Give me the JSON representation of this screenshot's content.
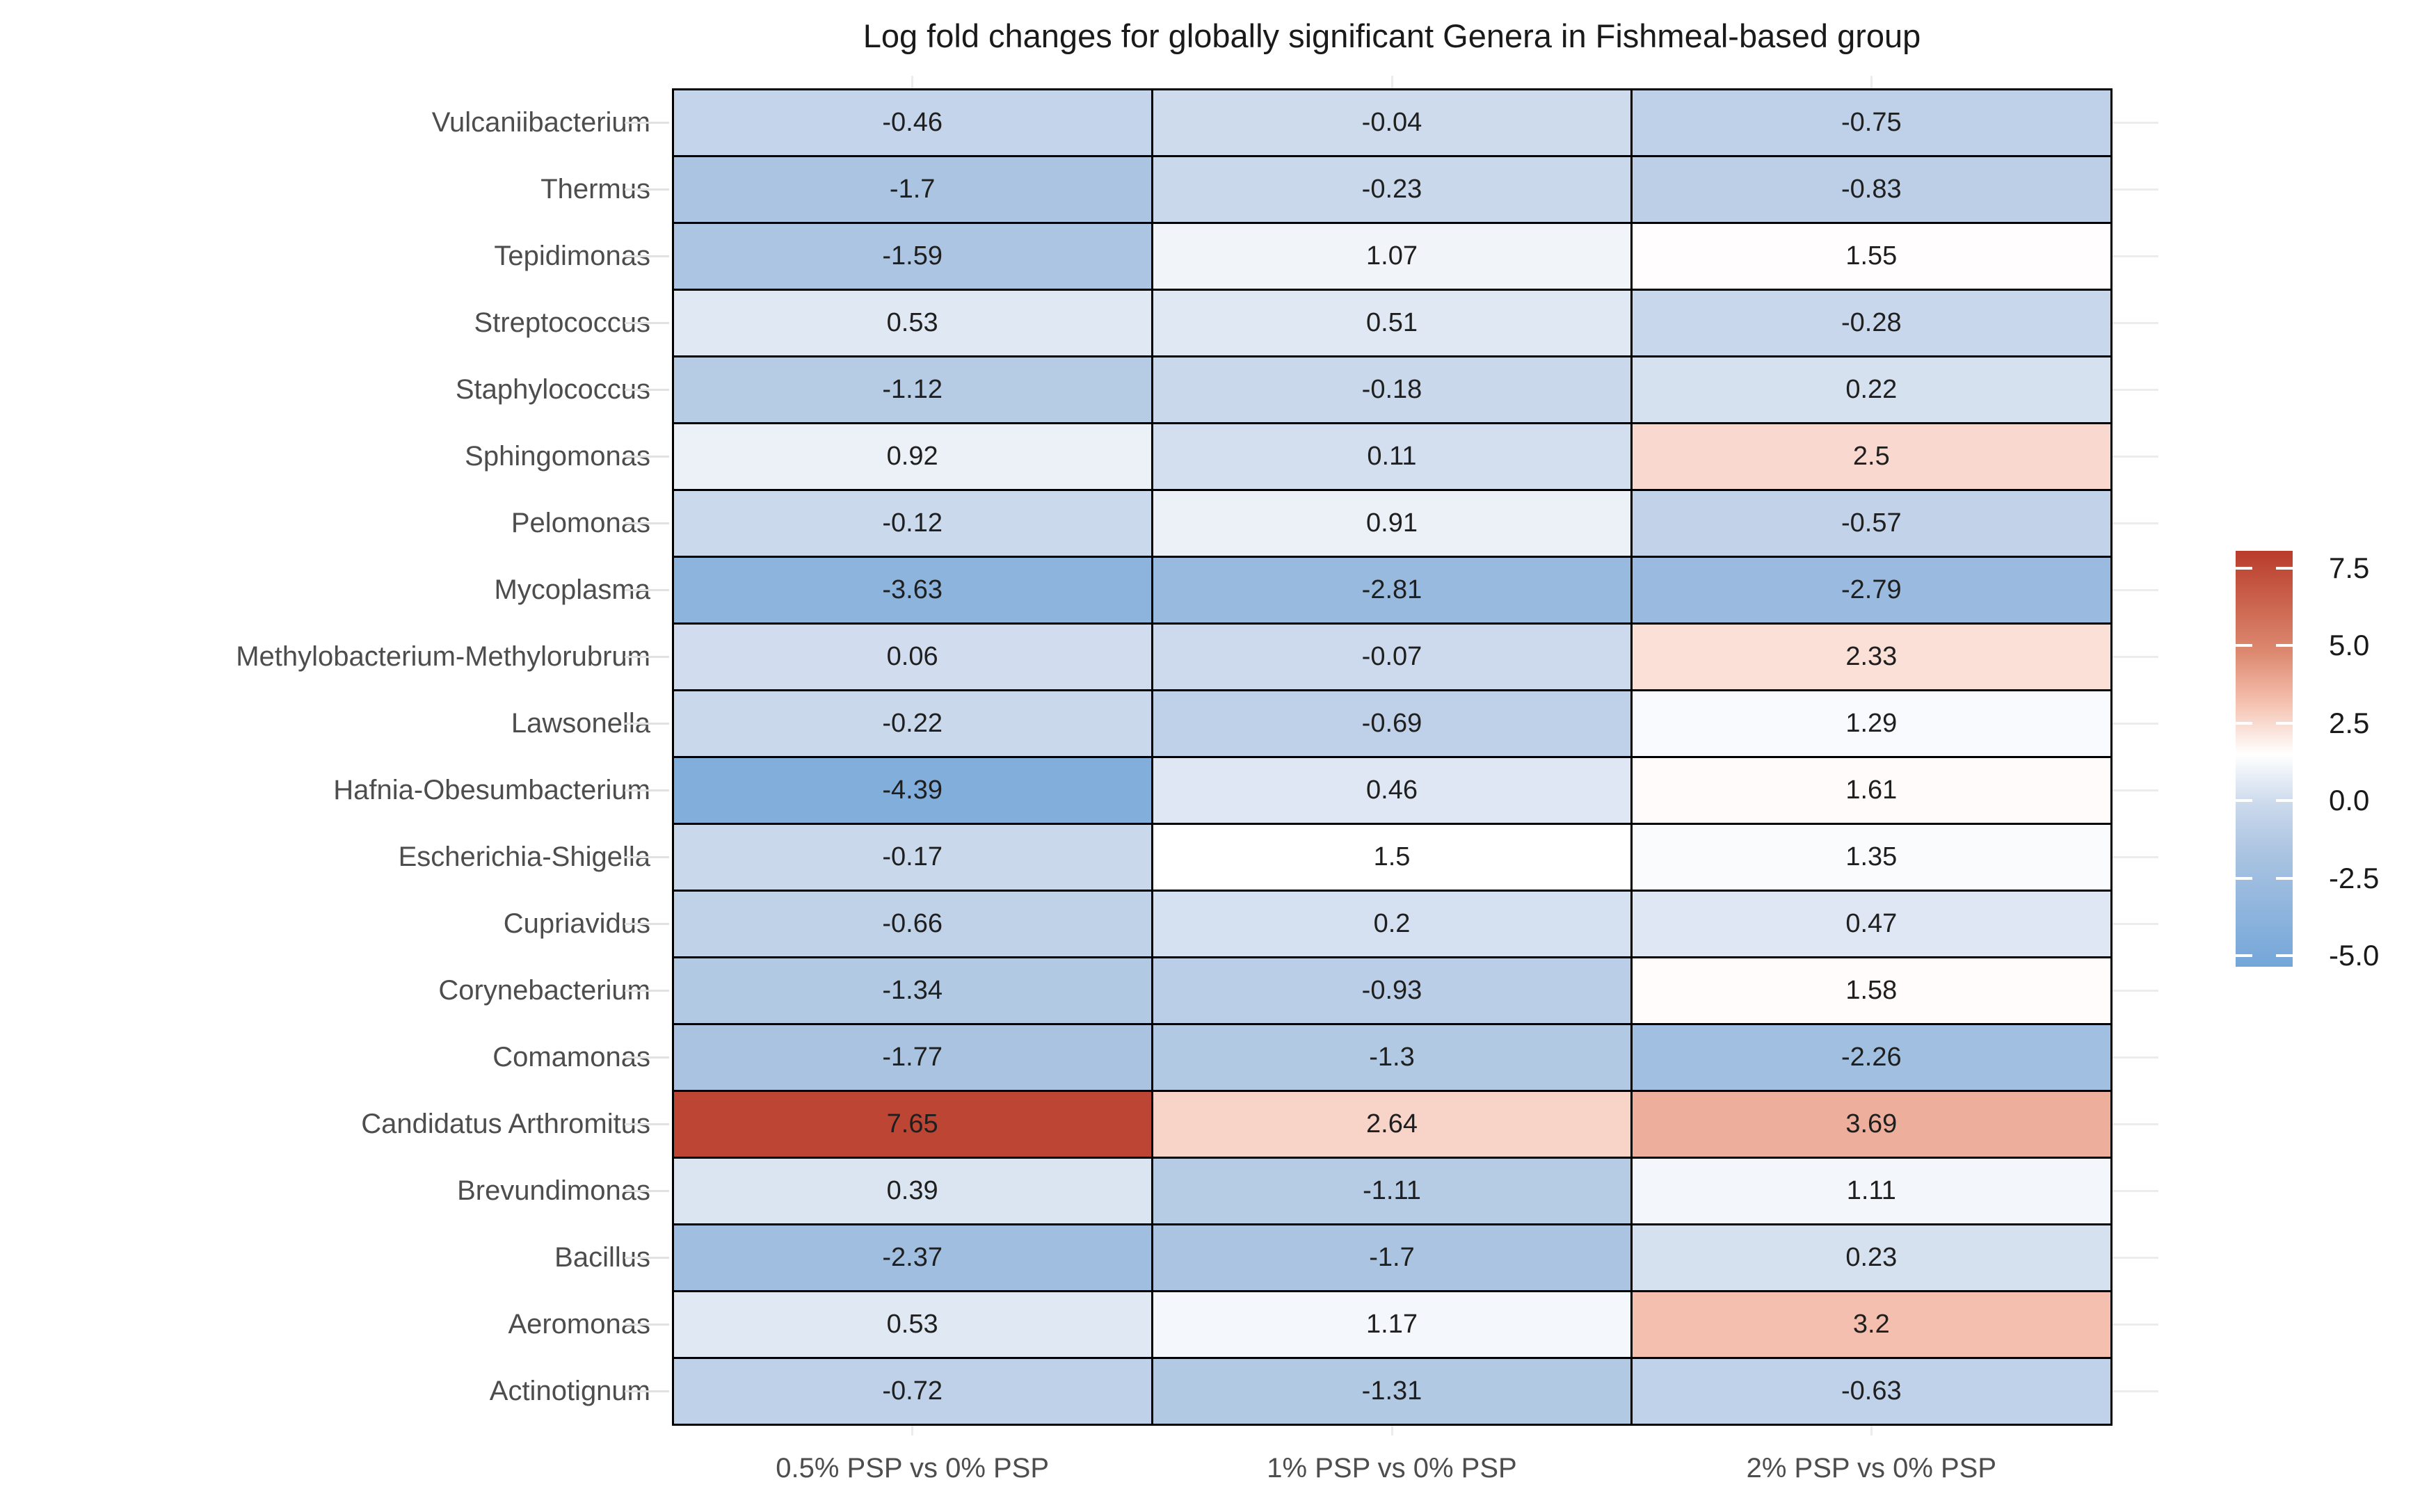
{
  "chart_data": {
    "type": "heatmap",
    "title": "Log fold changes for globally significant Genera in Fishmeal-based group",
    "columns": [
      "0.5% PSP vs 0% PSP",
      "1% PSP vs 0% PSP",
      "2% PSP vs 0% PSP"
    ],
    "rows": [
      "Vulcaniibacterium",
      "Thermus",
      "Tepidimonas",
      "Streptococcus",
      "Staphylococcus",
      "Sphingomonas",
      "Pelomonas",
      "Mycoplasma",
      "Methylobacterium-Methylorubrum",
      "Lawsonella",
      "Hafnia-Obesumbacterium",
      "Escherichia-Shigella",
      "Cupriavidus",
      "Corynebacterium",
      "Comamonas",
      "Candidatus Arthromitus",
      "Brevundimonas",
      "Bacillus",
      "Aeromonas",
      "Actinotignum"
    ],
    "values": [
      [
        -0.46,
        -0.04,
        -0.75
      ],
      [
        -1.7,
        -0.23,
        -0.83
      ],
      [
        -1.59,
        1.07,
        1.55
      ],
      [
        0.53,
        0.51,
        -0.28
      ],
      [
        -1.12,
        -0.18,
        0.22
      ],
      [
        0.92,
        0.11,
        2.5
      ],
      [
        -0.12,
        0.91,
        -0.57
      ],
      [
        -3.63,
        -2.81,
        -2.79
      ],
      [
        0.06,
        -0.07,
        2.33
      ],
      [
        -0.22,
        -0.69,
        1.29
      ],
      [
        -4.39,
        0.46,
        1.61
      ],
      [
        -0.17,
        1.5,
        1.35
      ],
      [
        -0.66,
        0.2,
        0.47
      ],
      [
        -1.34,
        -0.93,
        1.58
      ],
      [
        -1.77,
        -1.3,
        -2.26
      ],
      [
        7.65,
        2.64,
        3.69
      ],
      [
        0.39,
        -1.11,
        1.11
      ],
      [
        -2.37,
        -1.7,
        0.23
      ],
      [
        0.53,
        1.17,
        3.2
      ],
      [
        -0.72,
        -1.31,
        -0.63
      ]
    ],
    "grid": true,
    "legend_position": "right",
    "colorbar": {
      "tick_labels": [
        "7.5",
        "5.0",
        "2.5",
        "0.0",
        "-2.5",
        "-5.0"
      ],
      "tick_values": [
        7.5,
        5.0,
        2.5,
        0.0,
        -2.5,
        -5.0
      ],
      "limits": [
        -5,
        8
      ],
      "midpoint": 1.5,
      "bar_top_value": 8.05,
      "bar_bottom_value": -5.35,
      "low_color": "#76a8da",
      "mid_color": "#ffffff",
      "high_color": "#ba3d2b",
      "color_stops": [
        {
          "v": 8.05,
          "c": "#b93c2b"
        },
        {
          "v": 4.75,
          "c": "#dd8a71"
        },
        {
          "v": 3.125,
          "c": "#f5c2b1"
        },
        {
          "v": 1.5,
          "c": "#ffffff"
        },
        {
          "v": -0.125,
          "c": "#cbd9ec"
        },
        {
          "v": -1.75,
          "c": "#a9c3e1"
        },
        {
          "v": -5.35,
          "c": "#74a6d9"
        }
      ]
    },
    "tile_border_color": "#000000",
    "axis_text_color": "#4d4d4d",
    "cell_text_color": "#1f1f1f"
  }
}
